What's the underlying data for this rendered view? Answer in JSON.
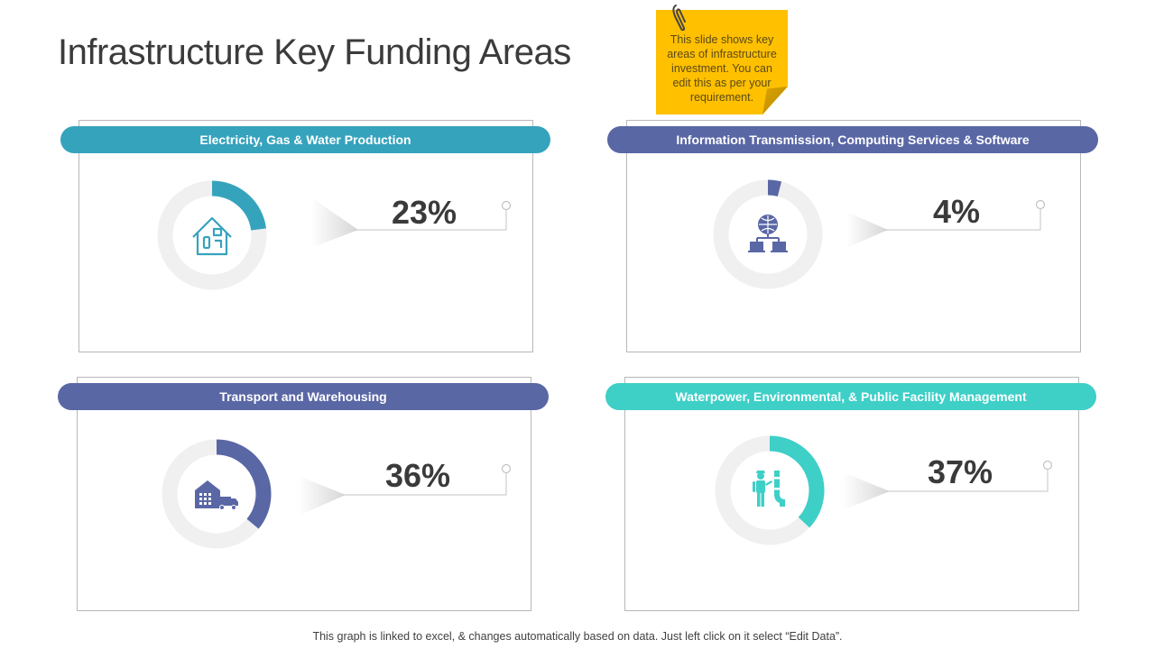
{
  "title": "Infrastructure Key Funding Areas",
  "note": "This slide shows key areas of infrastructure investment. You can edit this as per your requirement.",
  "footer": "This graph is linked to excel, & changes automatically based on data. Just left click on it select “Edit Data”.",
  "colors": {
    "teal": "#36a3bd",
    "indigo": "#5a67a5",
    "aqua": "#3ecfc7",
    "track": "#f0f0f0",
    "note": "#ffc000"
  },
  "chart_data": [
    {
      "type": "donut",
      "category": "Electricity, Gas & Water Production",
      "label": "23%",
      "value": 23,
      "color": "#36a3bd",
      "icon": "house-utilities-icon"
    },
    {
      "type": "donut",
      "category": "Information Transmission, Computing Services & Software",
      "label": "4%",
      "value": 4,
      "color": "#5a67a5",
      "icon": "globe-network-icon"
    },
    {
      "type": "donut",
      "category": "Transport and Warehousing",
      "label": "36%",
      "value": 36,
      "color": "#5a67a5",
      "icon": "warehouse-truck-icon"
    },
    {
      "type": "donut",
      "category": "Waterpower, Environmental, & Public Facility Management",
      "label": "37%",
      "value": 37,
      "color": "#3ecfc7",
      "icon": "plumber-worker-icon"
    }
  ]
}
